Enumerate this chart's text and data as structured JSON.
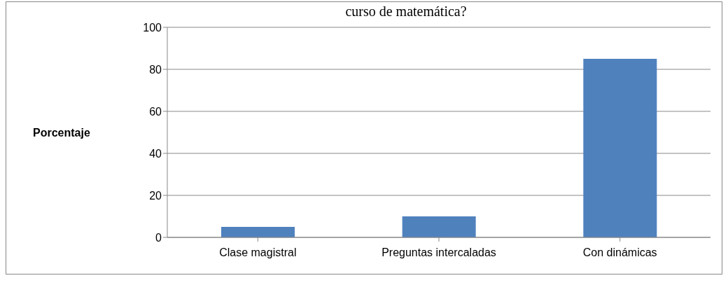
{
  "chart_data": {
    "type": "bar",
    "title": "curso de matemática?",
    "ylabel": "Porcentaje",
    "categories": [
      "Clase magistral",
      "Preguntas intercaladas",
      "Con dinámicas"
    ],
    "values": [
      5,
      10,
      85
    ],
    "color": "#4f81bd",
    "ylim": [
      0,
      100
    ],
    "yticks": [
      0,
      20,
      40,
      60,
      80,
      100
    ],
    "grid": "y"
  }
}
